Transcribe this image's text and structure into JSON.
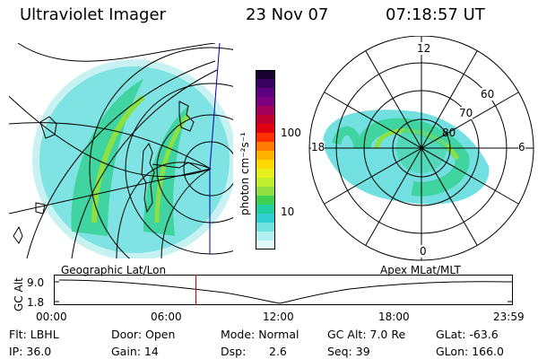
{
  "header": {
    "instrument": "Ultraviolet Imager",
    "date": "23 Nov 07",
    "time": "07:18:57 UT"
  },
  "colorbar": {
    "unit_label": "photon cm⁻²s⁻¹",
    "ticks": [
      "100",
      "10"
    ],
    "colors": [
      "#1a0033",
      "#3a0060",
      "#5c0080",
      "#7a0080",
      "#a0005a",
      "#c00030",
      "#e00010",
      "#ff3000",
      "#ff7a00",
      "#ffb000",
      "#ffd800",
      "#e8ef20",
      "#c0ef30",
      "#90e040",
      "#40d050",
      "#20d0a0",
      "#30d0d0",
      "#70e0e0",
      "#b0f0f0",
      "#e0f8f8"
    ]
  },
  "geo_panel": {
    "label": "Geographic Lat/Lon"
  },
  "polar_panel": {
    "label": "Apex MLat/MLT",
    "mlt_labels": {
      "top": "12",
      "left": "18",
      "right": "6",
      "bottom": "0"
    },
    "lat_labels": [
      "60",
      "70",
      "80"
    ]
  },
  "altitude_plot": {
    "axis_label": "GC Alt",
    "y_ticks": [
      "9.0",
      "1.8"
    ],
    "x_ticks": [
      "00:00",
      "06:00",
      "12:00",
      "18:00",
      "23:59"
    ],
    "current_time_fraction": 0.305,
    "marker_color": "#cc0000"
  },
  "info": {
    "filter": "Flt: LBHL",
    "door": "Door: Open",
    "mode": "Mode: Normal",
    "gc_alt": "GC Alt: 7.0 Re",
    "glat": "GLat: -63.6",
    "ip": "IP: 36.0",
    "gain": "Gain: 14",
    "dsp_label": "Dsp:",
    "dsp_value": "2.6",
    "seq": "Seq: 39",
    "glon": "GLon: 166.0"
  }
}
